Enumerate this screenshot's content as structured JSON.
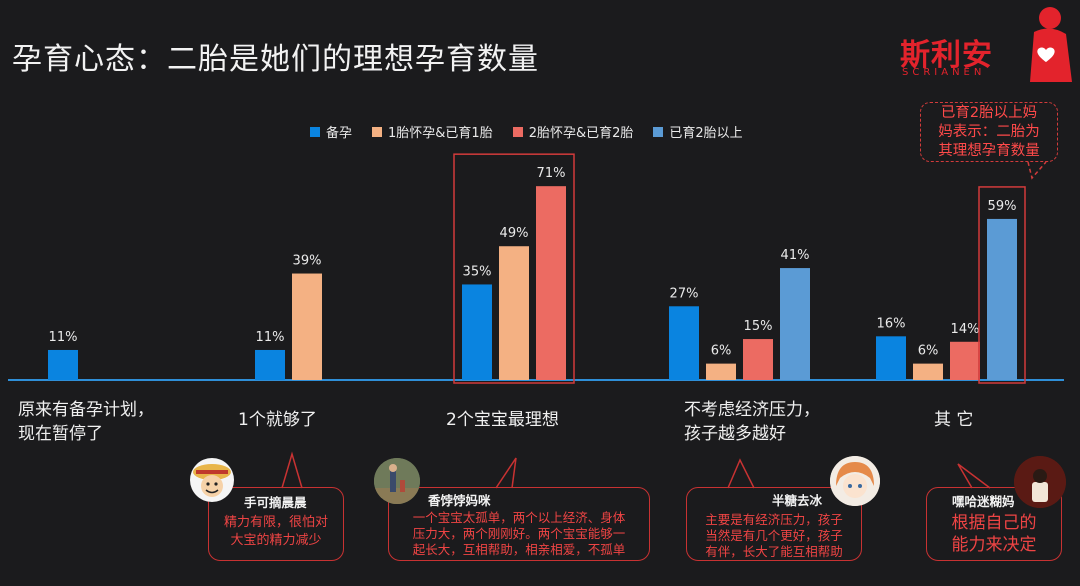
{
  "title": "孕育心态：二胎是她们的理想孕育数量",
  "logo": {
    "text": "斯利安",
    "sub": "SCRIANEN"
  },
  "legend": [
    {
      "label": "备孕",
      "color": "#0a84e0"
    },
    {
      "label": "1胎怀孕&已育1胎",
      "color": "#f4b183"
    },
    {
      "label": "2胎怀孕&已育2胎",
      "color": "#ec6b62"
    },
    {
      "label": "已育2胎以上",
      "color": "#5b9bd5"
    }
  ],
  "chart_data": {
    "type": "bar",
    "categories": [
      "原来有备孕计划，现在暂停了",
      "1个就够了",
      "2个宝宝最理想",
      "不考虑经济压力，孩子越多越好",
      "其 它"
    ],
    "category_lines": [
      [
        "原来有备孕计划，",
        "现在暂停了"
      ],
      [
        "1个就够了"
      ],
      [
        "2个宝宝最理想"
      ],
      [
        "不考虑经济压力，",
        "孩子越多越好"
      ],
      [
        "其 它"
      ]
    ],
    "series": [
      {
        "name": "备孕",
        "color": "#0a84e0",
        "values": [
          11,
          11,
          35,
          27,
          16
        ]
      },
      {
        "name": "1胎怀孕&已育1胎",
        "color": "#f4b183",
        "values": [
          null,
          39,
          49,
          6,
          6
        ]
      },
      {
        "name": "2胎怀孕&已育2胎",
        "color": "#ec6b62",
        "values": [
          null,
          null,
          71,
          15,
          14
        ]
      },
      {
        "name": "已育2胎以上",
        "color": "#5b9bd5",
        "values": [
          null,
          null,
          null,
          41,
          59
        ]
      }
    ],
    "value_suffix": "%",
    "ylim": [
      0,
      100
    ],
    "highlight": [
      {
        "category": 2
      },
      {
        "category": 4,
        "series": 3
      }
    ]
  },
  "annotation": {
    "lines": [
      "已育2胎以上妈",
      "妈表示：二胎为",
      "其理想孕育数量"
    ]
  },
  "comments": [
    {
      "user": "手可摘晨晨",
      "lines": [
        "精力有限，很怕对",
        "大宝的精力减少"
      ]
    },
    {
      "user": "香饽饽妈咪",
      "lines": [
        "一个宝宝太孤单，两个以上经济、身体",
        "压力大，两个刚刚好。两个宝宝能够一",
        "起长大，互相帮助，相亲相爱，不孤单"
      ]
    },
    {
      "user": "半糖去冰",
      "lines": [
        "主要是有经济压力，孩子",
        "当然是有几个更好，孩子",
        "有伴，长大了能互相帮助"
      ]
    },
    {
      "user": "嘿哈迷糊妈",
      "lines": [
        "根据自己的",
        "能力来决定"
      ]
    }
  ]
}
